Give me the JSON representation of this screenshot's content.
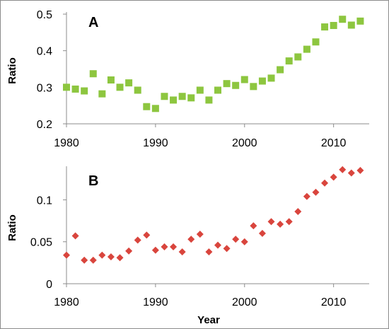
{
  "chart_data": [
    {
      "type": "scatter",
      "panel_label": "A",
      "ylabel": "Ratio",
      "xlabel": "",
      "xlim": [
        1980,
        2014
      ],
      "ylim": [
        0.2,
        0.5
      ],
      "xticks": [
        1980,
        1990,
        2000,
        2010
      ],
      "yticks": [
        0.2,
        0.3,
        0.4,
        0.5
      ],
      "ytick_labels": [
        "0.2",
        "0.3",
        "0.4",
        "0.5"
      ],
      "marker": "square",
      "color": "#8dc63f",
      "series": [
        {
          "x": [
            1980,
            1981,
            1982,
            1983,
            1984,
            1985,
            1986,
            1987,
            1988,
            1989,
            1990,
            1991,
            1992,
            1993,
            1994,
            1995,
            1996,
            1997,
            1998,
            1999,
            2000,
            2001,
            2002,
            2003,
            2004,
            2005,
            2006,
            2007,
            2008,
            2009,
            2010,
            2011,
            2012,
            2013
          ],
          "y": [
            0.3,
            0.295,
            0.29,
            0.337,
            0.282,
            0.32,
            0.3,
            0.312,
            0.292,
            0.247,
            0.242,
            0.275,
            0.265,
            0.275,
            0.271,
            0.292,
            0.265,
            0.292,
            0.31,
            0.305,
            0.321,
            0.302,
            0.317,
            0.325,
            0.348,
            0.372,
            0.383,
            0.404,
            0.424,
            0.465,
            0.469,
            0.486,
            0.47,
            0.481
          ]
        }
      ]
    },
    {
      "type": "scatter",
      "panel_label": "B",
      "ylabel": "Ratio",
      "xlabel": "Year",
      "xlim": [
        1980,
        2014
      ],
      "ylim": [
        0,
        0.14
      ],
      "xticks": [
        1980,
        1990,
        2000,
        2010
      ],
      "yticks": [
        0,
        0.05,
        0.1
      ],
      "ytick_labels": [
        "0",
        "0.05",
        "0.1"
      ],
      "marker": "diamond",
      "color": "#d9453d",
      "series": [
        {
          "x": [
            1980,
            1981,
            1982,
            1983,
            1984,
            1985,
            1986,
            1987,
            1988,
            1989,
            1990,
            1991,
            1992,
            1993,
            1994,
            1995,
            1996,
            1997,
            1998,
            1999,
            2000,
            2001,
            2002,
            2003,
            2004,
            2005,
            2006,
            2007,
            2008,
            2009,
            2010,
            2011,
            2012,
            2013
          ],
          "y": [
            0.034,
            0.057,
            0.028,
            0.028,
            0.034,
            0.032,
            0.031,
            0.039,
            0.052,
            0.058,
            0.04,
            0.044,
            0.044,
            0.038,
            0.053,
            0.059,
            0.038,
            0.046,
            0.042,
            0.053,
            0.05,
            0.069,
            0.06,
            0.074,
            0.071,
            0.074,
            0.086,
            0.104,
            0.109,
            0.12,
            0.127,
            0.136,
            0.132,
            0.135
          ]
        }
      ]
    }
  ]
}
